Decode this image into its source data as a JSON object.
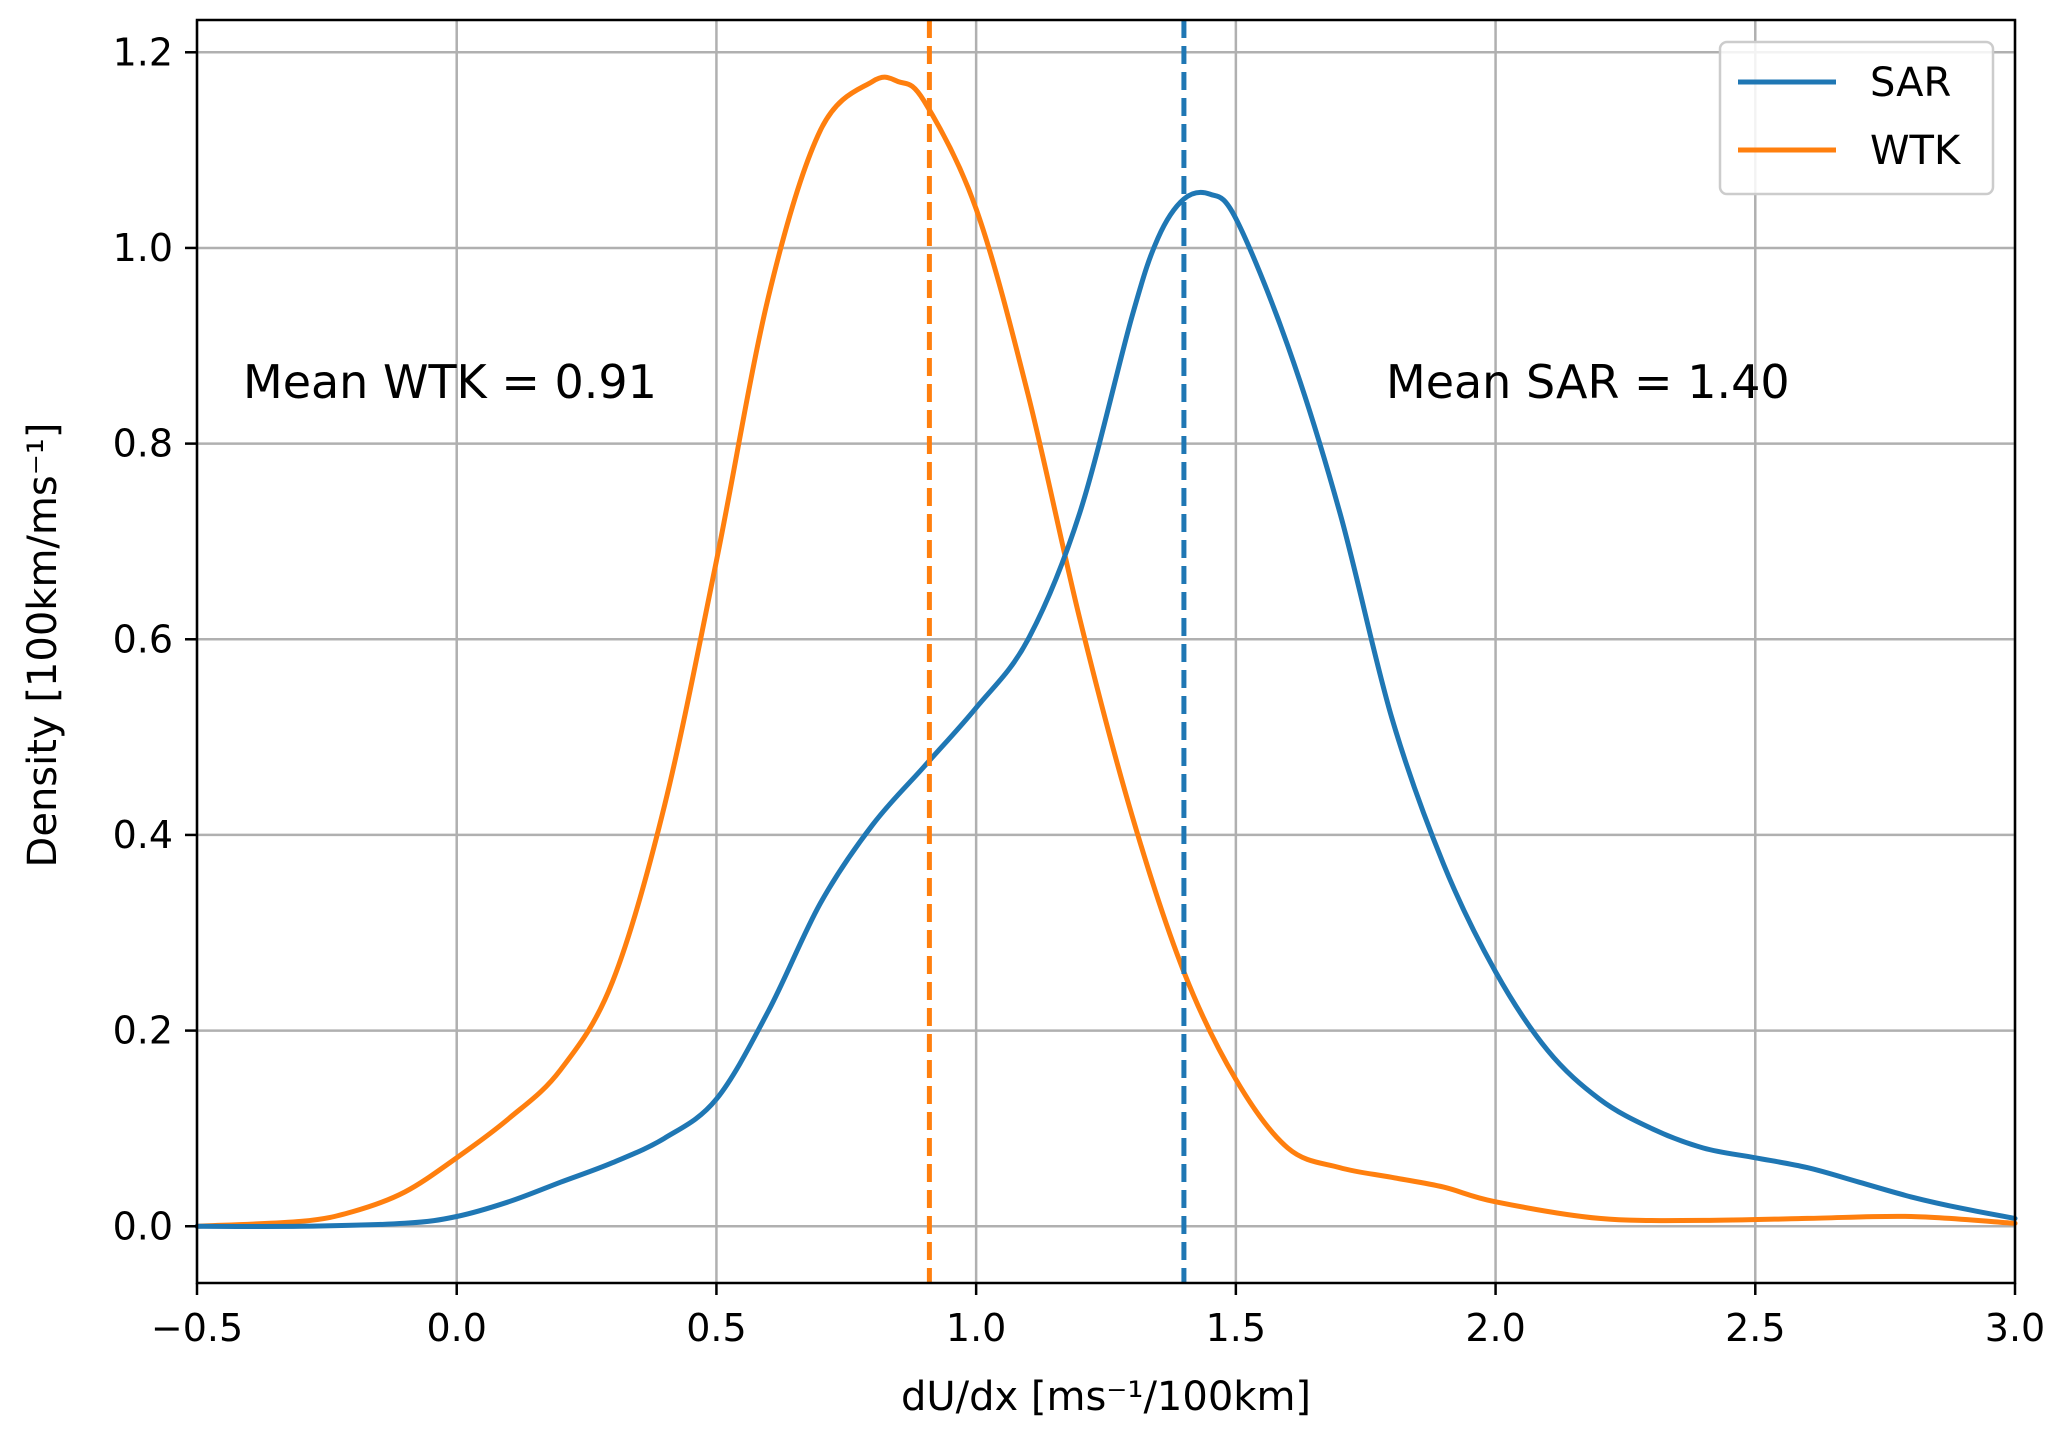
{
  "chart_data": {
    "type": "line",
    "xlabel": "dU/dx [ms⁻¹/100km]",
    "ylabel": "Density [100km/ms⁻¹]",
    "xlim": [
      -0.5,
      3.0
    ],
    "ylim": [
      -0.058,
      1.233
    ],
    "xticks": [
      -0.5,
      0.0,
      0.5,
      1.0,
      1.5,
      2.0,
      2.5,
      3.0
    ],
    "xtick_labels": [
      "−0.5",
      "0.0",
      "0.5",
      "1.0",
      "1.5",
      "2.0",
      "2.5",
      "3.0"
    ],
    "yticks": [
      0.0,
      0.2,
      0.4,
      0.6,
      0.8,
      1.0,
      1.2
    ],
    "ytick_labels": [
      "0.0",
      "0.2",
      "0.4",
      "0.6",
      "0.8",
      "1.0",
      "1.2"
    ],
    "grid": true,
    "legend_position": "top-right",
    "series": [
      {
        "name": "SAR",
        "color": "#1f77b4",
        "x": [
          -0.5,
          -0.3,
          -0.1,
          0.0,
          0.1,
          0.2,
          0.3,
          0.4,
          0.5,
          0.6,
          0.7,
          0.8,
          0.9,
          1.0,
          1.1,
          1.2,
          1.3,
          1.35,
          1.4,
          1.45,
          1.5,
          1.6,
          1.7,
          1.8,
          1.9,
          2.0,
          2.1,
          2.2,
          2.3,
          2.4,
          2.5,
          2.6,
          2.7,
          2.8,
          2.9,
          3.0
        ],
        "y": [
          0.0,
          0.0,
          0.003,
          0.01,
          0.025,
          0.045,
          0.065,
          0.09,
          0.13,
          0.22,
          0.33,
          0.41,
          0.47,
          0.53,
          0.6,
          0.73,
          0.93,
          1.01,
          1.05,
          1.055,
          1.03,
          0.9,
          0.73,
          0.52,
          0.37,
          0.26,
          0.18,
          0.13,
          0.1,
          0.08,
          0.07,
          0.06,
          0.045,
          0.03,
          0.018,
          0.008
        ]
      },
      {
        "name": "WTK",
        "color": "#ff7f0e",
        "x": [
          -0.5,
          -0.3,
          -0.2,
          -0.1,
          0.0,
          0.1,
          0.2,
          0.3,
          0.4,
          0.5,
          0.6,
          0.7,
          0.8,
          0.85,
          0.9,
          1.0,
          1.1,
          1.2,
          1.3,
          1.4,
          1.5,
          1.6,
          1.7,
          1.8,
          1.9,
          2.0,
          2.2,
          2.4,
          2.6,
          2.8,
          3.0
        ],
        "y": [
          0.0,
          0.005,
          0.015,
          0.035,
          0.07,
          0.11,
          0.16,
          0.25,
          0.43,
          0.68,
          0.95,
          1.12,
          1.17,
          1.17,
          1.15,
          1.04,
          0.85,
          0.62,
          0.42,
          0.26,
          0.15,
          0.08,
          0.06,
          0.05,
          0.04,
          0.025,
          0.008,
          0.006,
          0.008,
          0.01,
          0.003
        ]
      }
    ],
    "vlines": [
      {
        "label": "Mean WTK",
        "x": 0.91,
        "color": "#ff7f0e",
        "style": "dashed"
      },
      {
        "label": "Mean SAR",
        "x": 1.4,
        "color": "#1f77b4",
        "style": "dashed"
      }
    ],
    "annotations": [
      {
        "text": "Mean WTK = 0.91",
        "x": -0.42,
        "y": 0.86
      },
      {
        "text": "Mean SAR = 1.40",
        "x": 1.78,
        "y": 0.86
      }
    ]
  }
}
